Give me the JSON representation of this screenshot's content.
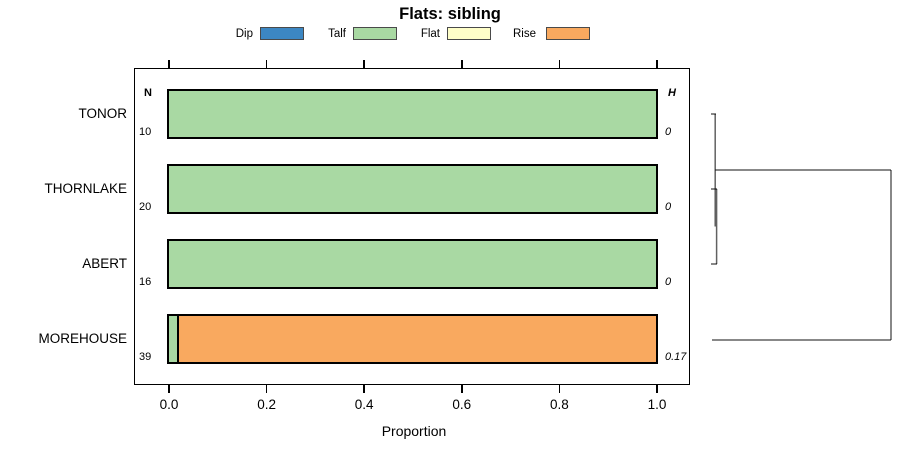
{
  "chart_data": {
    "type": "bar",
    "subtype": "stacked-horizontal",
    "title": "Flats: sibling",
    "xlabel": "Proportion",
    "xlim": [
      0,
      1
    ],
    "xticks": [
      "0.0",
      "0.2",
      "0.4",
      "0.6",
      "0.8",
      "1.0"
    ],
    "grid": false,
    "legend": {
      "position": "top",
      "entries": [
        {
          "label": "Dip",
          "color": "#3C87C3"
        },
        {
          "label": "Talf",
          "color": "#A9D9A3"
        },
        {
          "label": "Flat",
          "color": "#FEFEC8"
        },
        {
          "label": "Rise",
          "color": "#F9A95F"
        }
      ]
    },
    "categories": [
      "TONOR",
      "THORNLAKE",
      "ABERT",
      "MOREHOUSE"
    ],
    "n_column": {
      "header": "N",
      "values": [
        "10",
        "20",
        "16",
        "39"
      ]
    },
    "h_column": {
      "header": "H",
      "values": [
        "0",
        "0",
        "0",
        "0.17"
      ]
    },
    "series": [
      {
        "name": "Dip",
        "values": [
          0,
          0,
          0,
          0
        ]
      },
      {
        "name": "Talf",
        "values": [
          1,
          1,
          1,
          0.02
        ]
      },
      {
        "name": "Flat",
        "values": [
          0,
          0,
          0,
          0
        ]
      },
      {
        "name": "Rise",
        "values": [
          0,
          0,
          0,
          0.98
        ]
      }
    ],
    "dendrogram": {
      "side": "right",
      "merges": [
        {
          "join": [
            "THORNLAKE",
            "ABERT"
          ],
          "height": 0
        },
        {
          "join": [
            "TONOR",
            "THORNLAKE+ABERT"
          ],
          "height": 0
        },
        {
          "join": [
            "TONOR+THORNLAKE+ABERT",
            "MOREHOUSE"
          ],
          "height": 0.17
        }
      ]
    }
  }
}
